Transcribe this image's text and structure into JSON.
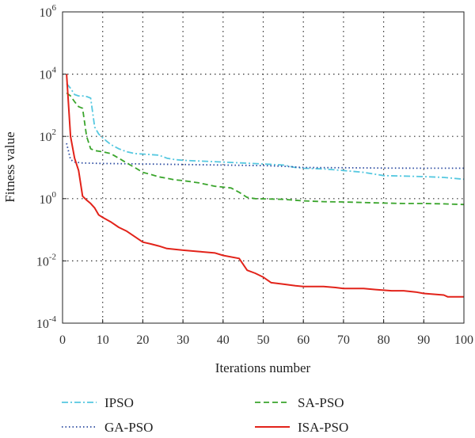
{
  "chart_data": {
    "type": "line",
    "xlabel": "Iterations number",
    "ylabel": "Fitness value",
    "xlim": [
      0,
      100
    ],
    "ylim": [
      0.0001,
      1000000
    ],
    "y_scale": "log",
    "grid": true,
    "legend_position": "bottom",
    "x_ticks": [
      "0",
      "10",
      "20",
      "30",
      "40",
      "50",
      "60",
      "70",
      "80",
      "90",
      "100"
    ],
    "y_ticks": [
      {
        "base": "10",
        "exp": "-4"
      },
      {
        "base": "10",
        "exp": "-2"
      },
      {
        "base": "10",
        "exp": "0"
      },
      {
        "base": "10",
        "exp": "2"
      },
      {
        "base": "10",
        "exp": "4"
      },
      {
        "base": "10",
        "exp": "6"
      }
    ],
    "series": [
      {
        "name": "IPSO",
        "color": "#55c8e0",
        "dash": "dashdot",
        "points": [
          [
            1,
            5000
          ],
          [
            2,
            3500
          ],
          [
            3,
            2200
          ],
          [
            4,
            2000
          ],
          [
            5,
            2000
          ],
          [
            6,
            1900
          ],
          [
            7,
            1700
          ],
          [
            8,
            200
          ],
          [
            9,
            120
          ],
          [
            10,
            90
          ],
          [
            11,
            70
          ],
          [
            12,
            55
          ],
          [
            14,
            40
          ],
          [
            16,
            32
          ],
          [
            18,
            28
          ],
          [
            20,
            27
          ],
          [
            22,
            26
          ],
          [
            24,
            25
          ],
          [
            26,
            20
          ],
          [
            28,
            18
          ],
          [
            30,
            17
          ],
          [
            35,
            16
          ],
          [
            40,
            15
          ],
          [
            45,
            14
          ],
          [
            50,
            13
          ],
          [
            55,
            12
          ],
          [
            58,
            10
          ],
          [
            60,
            9.5
          ],
          [
            65,
            9
          ],
          [
            70,
            8
          ],
          [
            75,
            7
          ],
          [
            80,
            5.5
          ],
          [
            85,
            5.3
          ],
          [
            90,
            5.1
          ],
          [
            95,
            4.8
          ],
          [
            100,
            4.2
          ]
        ]
      },
      {
        "name": "GA-PSO",
        "color": "#2b4aa0",
        "dash": "dotted",
        "points": [
          [
            1,
            60
          ],
          [
            2,
            18
          ],
          [
            3,
            15
          ],
          [
            5,
            14
          ],
          [
            10,
            13.5
          ],
          [
            20,
            13
          ],
          [
            30,
            12.5
          ],
          [
            40,
            12
          ],
          [
            50,
            11.5
          ],
          [
            55,
            11
          ],
          [
            60,
            10
          ],
          [
            70,
            9.8
          ],
          [
            80,
            9.6
          ],
          [
            90,
            9.5
          ],
          [
            100,
            9.5
          ]
        ]
      },
      {
        "name": "SA-PSO",
        "color": "#3aa52c",
        "dash": "dashed",
        "points": [
          [
            1,
            2500
          ],
          [
            2,
            2000
          ],
          [
            3,
            1300
          ],
          [
            4,
            900
          ],
          [
            5,
            800
          ],
          [
            6,
            100
          ],
          [
            7,
            40
          ],
          [
            8,
            35
          ],
          [
            10,
            32
          ],
          [
            12,
            28
          ],
          [
            14,
            20
          ],
          [
            16,
            14
          ],
          [
            18,
            10
          ],
          [
            20,
            7
          ],
          [
            22,
            6
          ],
          [
            24,
            5
          ],
          [
            26,
            4.5
          ],
          [
            28,
            4
          ],
          [
            30,
            3.8
          ],
          [
            34,
            3.2
          ],
          [
            38,
            2.5
          ],
          [
            42,
            2.2
          ],
          [
            44,
            1.6
          ],
          [
            46,
            1.1
          ],
          [
            48,
            1.0
          ],
          [
            55,
            0.95
          ],
          [
            60,
            0.85
          ],
          [
            65,
            0.8
          ],
          [
            70,
            0.78
          ],
          [
            75,
            0.75
          ],
          [
            80,
            0.72
          ],
          [
            85,
            0.7
          ],
          [
            90,
            0.7
          ],
          [
            95,
            0.68
          ],
          [
            100,
            0.65
          ]
        ]
      },
      {
        "name": "ISA-PSO",
        "color": "#e2231a",
        "dash": "solid",
        "points": [
          [
            1,
            10000
          ],
          [
            2,
            100
          ],
          [
            3,
            20
          ],
          [
            4,
            8
          ],
          [
            5,
            1.2
          ],
          [
            6,
            0.9
          ],
          [
            7,
            0.7
          ],
          [
            8,
            0.5
          ],
          [
            9,
            0.3
          ],
          [
            10,
            0.25
          ],
          [
            12,
            0.18
          ],
          [
            14,
            0.12
          ],
          [
            16,
            0.09
          ],
          [
            18,
            0.06
          ],
          [
            20,
            0.04
          ],
          [
            22,
            0.035
          ],
          [
            24,
            0.03
          ],
          [
            26,
            0.025
          ],
          [
            30,
            0.022
          ],
          [
            34,
            0.02
          ],
          [
            38,
            0.018
          ],
          [
            40,
            0.015
          ],
          [
            44,
            0.012
          ],
          [
            46,
            0.005
          ],
          [
            48,
            0.004
          ],
          [
            50,
            0.003
          ],
          [
            52,
            0.002
          ],
          [
            55,
            0.0018
          ],
          [
            58,
            0.0016
          ],
          [
            60,
            0.0015
          ],
          [
            65,
            0.0015
          ],
          [
            68,
            0.0014
          ],
          [
            70,
            0.0013
          ],
          [
            75,
            0.0013
          ],
          [
            78,
            0.0012
          ],
          [
            82,
            0.0011
          ],
          [
            85,
            0.0011
          ],
          [
            88,
            0.001
          ],
          [
            90,
            0.0009
          ],
          [
            95,
            0.0008
          ],
          [
            96,
            0.0007
          ],
          [
            100,
            0.0007
          ]
        ]
      }
    ]
  }
}
